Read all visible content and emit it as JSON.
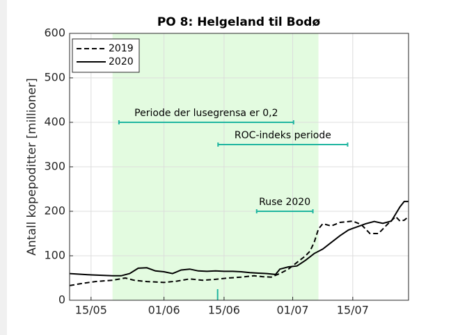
{
  "chart_data": {
    "type": "line",
    "title": "PO 8: Helgeland til Bodø",
    "ylabel": "Antall kopepoditter [millioner]",
    "xlim": [
      130,
      209
    ],
    "ylim": [
      0,
      600
    ],
    "xticks": [
      {
        "value": 135,
        "label": "15/05"
      },
      {
        "value": 152,
        "label": "01/06"
      },
      {
        "value": 166,
        "label": "15/06"
      },
      {
        "value": 182,
        "label": "01/07"
      },
      {
        "value": 196,
        "label": "15/07"
      }
    ],
    "yticks": [
      0,
      100,
      200,
      300,
      400,
      500,
      600
    ],
    "grid": true,
    "legend": "upper left",
    "shaded_span": [
      140,
      188
    ],
    "shade_color": "#e3fbe0",
    "series": [
      {
        "name": "2019",
        "color": "#000000",
        "linestyle": "dashed",
        "x": [
          130,
          133,
          136,
          140,
          143,
          145,
          148,
          152,
          155,
          158,
          161,
          164,
          167,
          170,
          173,
          175,
          177,
          179,
          181,
          183,
          185,
          186,
          187,
          188,
          189,
          191,
          193,
          196,
          198,
          200,
          202,
          204,
          206,
          207,
          208,
          209
        ],
        "values": [
          33,
          38,
          42,
          45,
          50,
          45,
          42,
          40,
          43,
          48,
          45,
          47,
          50,
          52,
          55,
          53,
          52,
          60,
          70,
          85,
          100,
          110,
          130,
          160,
          172,
          167,
          175,
          178,
          170,
          150,
          150,
          170,
          188,
          178,
          180,
          188
        ]
      },
      {
        "name": "2020",
        "color": "#000000",
        "linestyle": "solid",
        "x": [
          130,
          135,
          140,
          142,
          144,
          146,
          148,
          150,
          152,
          154,
          156,
          158,
          160,
          162,
          164,
          166,
          168,
          170,
          172,
          174,
          176,
          178,
          179,
          181,
          183,
          185,
          187,
          189,
          191,
          193,
          195,
          197,
          199,
          201,
          203,
          205,
          207,
          208,
          209
        ],
        "values": [
          60,
          57,
          55,
          55,
          60,
          72,
          73,
          66,
          64,
          60,
          68,
          70,
          66,
          65,
          66,
          65,
          65,
          64,
          62,
          61,
          60,
          58,
          70,
          75,
          77,
          90,
          105,
          115,
          130,
          145,
          158,
          165,
          172,
          177,
          173,
          178,
          210,
          222,
          222
        ]
      }
    ],
    "annotation_color": "#1fb5a0",
    "annotations": [
      {
        "label": "Periode der lusegrensa er 0,2",
        "x": [
          141.5,
          182.2
        ],
        "y": 400
      },
      {
        "label": "ROC-indeks periode",
        "x": [
          164.6,
          194.8
        ],
        "y": 350
      },
      {
        "label": "Ruse 2020",
        "x": [
          173.6,
          186.7
        ],
        "y": 200
      }
    ],
    "marker": {
      "x": 164.5,
      "y": [
        0,
        25
      ]
    }
  }
}
